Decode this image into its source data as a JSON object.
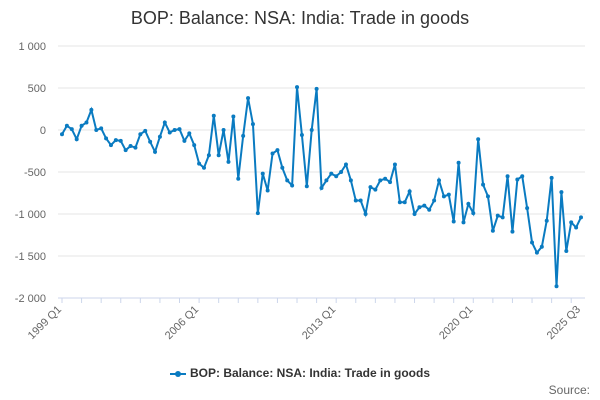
{
  "chart_data": {
    "type": "line",
    "title": "BOP: Balance: NSA: India: Trade in goods",
    "xlabel": "",
    "ylabel": "",
    "ylim": [
      -2000,
      1000
    ],
    "yticks": [
      1000,
      500,
      0,
      -500,
      -1000,
      -1500,
      -2000
    ],
    "ytick_labels": [
      "1 000",
      "500",
      "0",
      "-500",
      "-1 000",
      "-1 500",
      "-2 000"
    ],
    "x_start": "1999 Q1",
    "x_end": "2025 Q3",
    "xtick_labels": [
      "1999 Q1",
      "2006 Q1",
      "2013 Q1",
      "2020 Q1",
      "2025 Q3"
    ],
    "grid": "horizontal",
    "legend": "bottom",
    "color": "#0a7bc1",
    "series": [
      {
        "name": "BOP: Balance: NSA: India: Trade in goods",
        "values": [
          -50,
          50,
          10,
          -110,
          50,
          90,
          240,
          0,
          20,
          -100,
          -180,
          -120,
          -130,
          -240,
          -190,
          -210,
          -50,
          -10,
          -140,
          -260,
          -80,
          90,
          -30,
          0,
          10,
          -130,
          -40,
          -180,
          -400,
          -450,
          -300,
          170,
          -300,
          0,
          -380,
          160,
          -580,
          -70,
          380,
          70,
          -990,
          -520,
          -720,
          -280,
          -240,
          -450,
          -600,
          -660,
          510,
          -60,
          -670,
          0,
          490,
          -690,
          -600,
          -520,
          -550,
          -500,
          -410,
          -600,
          -840,
          -840,
          -1000,
          -680,
          -710,
          -600,
          -580,
          -620,
          -410,
          -860,
          -860,
          -730,
          -1000,
          -920,
          -900,
          -950,
          -840,
          -600,
          -790,
          -770,
          -1090,
          -390,
          -1100,
          -880,
          -990,
          -110,
          -650,
          -790,
          -1200,
          -1020,
          -1040,
          -550,
          -1210,
          -590,
          -550,
          -930,
          -1340,
          -1460,
          -1390,
          -1080,
          -570,
          -1860,
          -740,
          -1440,
          -1100,
          -1160,
          -1040
        ]
      }
    ]
  },
  "source_label": "Source:"
}
